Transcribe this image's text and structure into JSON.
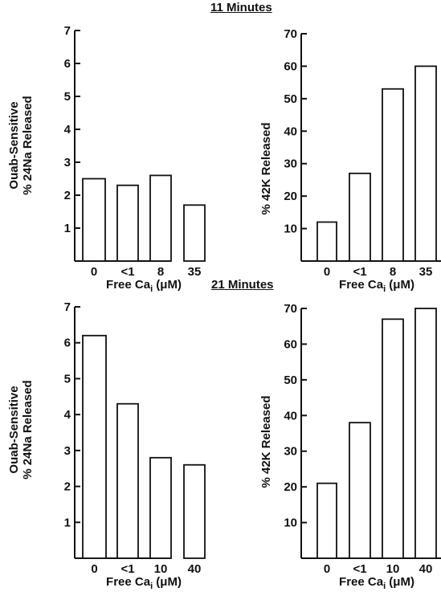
{
  "sections": [
    {
      "title": "11 Minutes"
    },
    {
      "title": "21 Minutes"
    }
  ],
  "chart_data": [
    {
      "type": "bar",
      "categories": [
        "0",
        "<1",
        "8",
        "35"
      ],
      "values": [
        2.5,
        2.3,
        2.6,
        1.7
      ],
      "ylabel": [
        "Ouab-Sensitive",
        "% 24Na Released"
      ],
      "xlabel": "Free Ca",
      "xlabel_sub": "i",
      "xlabel_unit": "(μM)",
      "yticks": [
        1,
        2,
        3,
        4,
        5,
        6,
        7
      ],
      "ylim": [
        0,
        7
      ]
    },
    {
      "type": "bar",
      "categories": [
        "0",
        "<1",
        "8",
        "35"
      ],
      "values": [
        12,
        27,
        53,
        60
      ],
      "ylabel": [
        "% 42K Released"
      ],
      "xlabel": "Free Ca",
      "xlabel_sub": "i",
      "xlabel_unit": "(μM)",
      "yticks": [
        10,
        20,
        30,
        40,
        50,
        60,
        70
      ],
      "ylim": [
        0,
        70
      ]
    },
    {
      "type": "bar",
      "categories": [
        "0",
        "<1",
        "10",
        "40"
      ],
      "values": [
        6.2,
        4.3,
        2.8,
        2.6
      ],
      "ylabel": [
        "Ouab-Sensitive",
        "% 24Na Released"
      ],
      "xlabel": "Free Ca",
      "xlabel_sub": "i",
      "xlabel_unit": "(μM)",
      "yticks": [
        1,
        2,
        3,
        4,
        5,
        6,
        7
      ],
      "ylim": [
        0,
        7
      ]
    },
    {
      "type": "bar",
      "categories": [
        "0",
        "<1",
        "10",
        "40"
      ],
      "values": [
        21,
        38,
        67,
        70
      ],
      "ylabel": [
        "% 42K Released"
      ],
      "xlabel": "Free Ca",
      "xlabel_sub": "i",
      "xlabel_unit": "(μM)",
      "yticks": [
        10,
        20,
        30,
        40,
        50,
        60,
        70
      ],
      "ylim": [
        0,
        70
      ]
    }
  ]
}
